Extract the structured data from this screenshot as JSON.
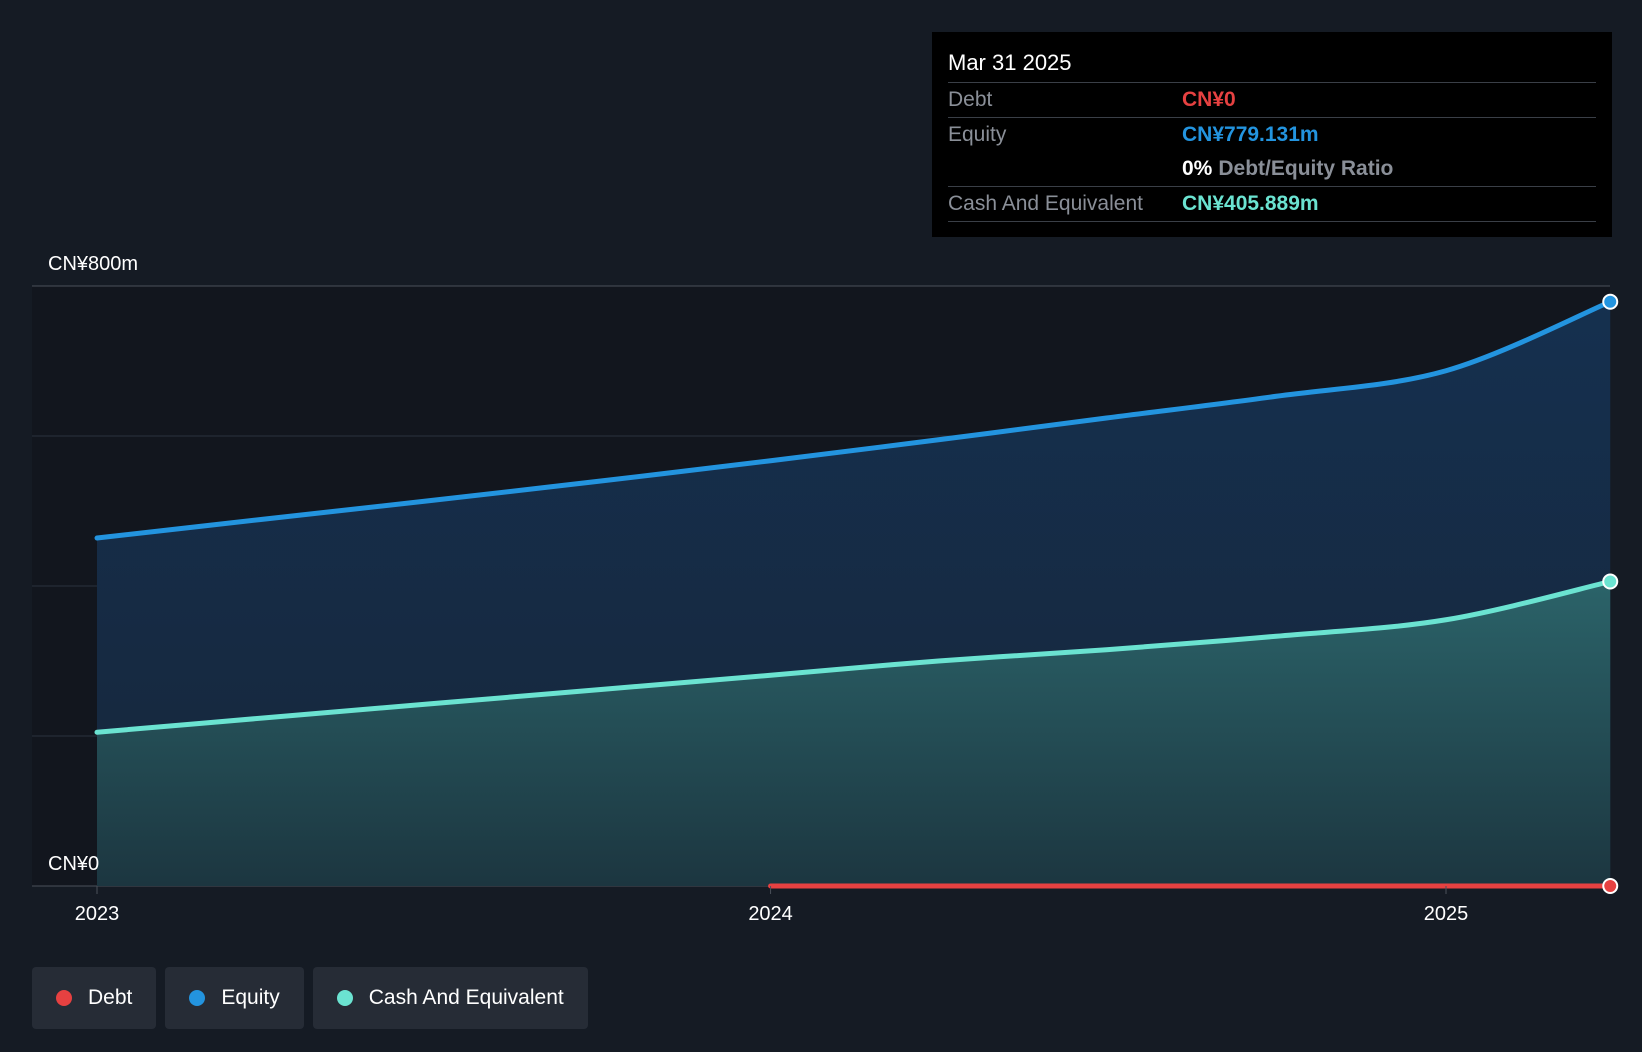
{
  "chart_data": {
    "type": "area",
    "x": [
      "2023-01-01",
      "2023-04-01",
      "2023-07-01",
      "2023-10-01",
      "2024-01-01",
      "2024-04-01",
      "2024-07-01",
      "2024-10-01",
      "2025-01-01",
      "2025-03-31"
    ],
    "series": [
      {
        "name": "Equity",
        "color": "#2394df",
        "values": [
          464,
          489,
          514,
          540,
          567,
          595,
          624,
          653,
          687,
          779
        ]
      },
      {
        "name": "Cash And Equivalent",
        "color": "#6be3d1",
        "values": [
          205,
          224,
          243,
          262,
          281,
          300,
          315,
          333,
          355,
          406
        ],
        "value_overrides_note": ""
      },
      {
        "name": "Debt",
        "color": "#e64141",
        "values": [
          null,
          null,
          null,
          null,
          0,
          0,
          0,
          0,
          0,
          0
        ]
      }
    ],
    "ylim": [
      0,
      800
    ],
    "y_tick_labels": [
      "CN¥800m",
      "CN¥0"
    ],
    "x_tick_labels": [
      "2023",
      "2024",
      "2025"
    ],
    "x_tick_dates": [
      "2023-01-01",
      "2024-01-01",
      "2025-01-01"
    ],
    "grid": true,
    "legend_position": "bottom-left"
  },
  "tooltip": {
    "date": "Mar 31 2025",
    "debt_label": "Debt",
    "debt_value": "CN¥0",
    "equity_label": "Equity",
    "equity_value": "CN¥779.131m",
    "ratio_pct": "0%",
    "ratio_label": "Debt/Equity Ratio",
    "cash_label": "Cash And Equivalent",
    "cash_value": "CN¥405.889m"
  },
  "legend": {
    "items": [
      {
        "label": "Debt",
        "color": "#e64141"
      },
      {
        "label": "Equity",
        "color": "#2394df"
      },
      {
        "label": "Cash And Equivalent",
        "color": "#6be3d1"
      }
    ]
  }
}
